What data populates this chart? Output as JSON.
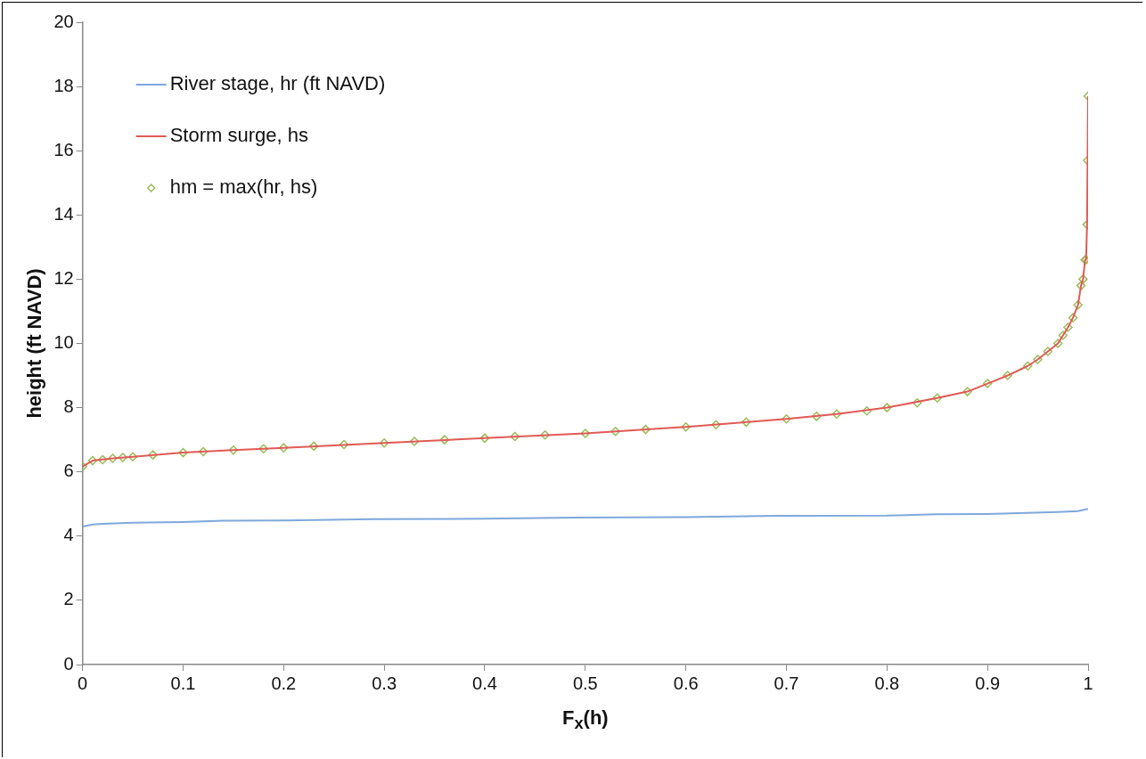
{
  "chart_data": {
    "type": "line",
    "xlabel": "F$_{x}$(h)",
    "ylabel": "height (ft NAVD)",
    "xlim": [
      0,
      1
    ],
    "xticks": [
      0,
      0.1,
      0.2,
      0.3,
      0.4,
      0.5,
      0.6,
      0.7,
      0.8,
      0.9,
      1
    ],
    "ylim": [
      0,
      20
    ],
    "yticks": [
      0,
      2,
      4,
      6,
      8,
      10,
      12,
      14,
      16,
      18,
      20
    ],
    "grid": false,
    "legend": "top left",
    "series": [
      {
        "name": "River stage, hr (ft NAVD)",
        "color": "#7fa8dc",
        "marker": "none",
        "x": [
          0,
          0.005,
          0.01,
          0.02,
          0.05,
          0.1,
          0.14,
          0.2,
          0.29,
          0.4,
          0.49,
          0.6,
          0.69,
          0.8,
          0.85,
          0.9,
          0.97,
          0.99,
          1
        ],
        "values": [
          4.3,
          4.33,
          4.36,
          4.38,
          4.42,
          4.44,
          4.48,
          4.49,
          4.53,
          4.54,
          4.58,
          4.59,
          4.63,
          4.64,
          4.68,
          4.69,
          4.75,
          4.78,
          4.85
        ]
      },
      {
        "name": "Storm surge, hs",
        "color": "#e05a55",
        "marker": "none",
        "x": [
          0,
          0.01,
          0.03,
          0.05,
          0.1,
          0.15,
          0.2,
          0.3,
          0.4,
          0.5,
          0.6,
          0.7,
          0.75,
          0.8,
          0.85,
          0.88,
          0.9,
          0.92,
          0.94,
          0.95,
          0.96,
          0.97,
          0.975,
          0.98,
          0.985,
          0.99,
          0.993,
          0.995,
          0.997,
          0.998,
          0.999,
          0.9995,
          1
        ],
        "values": [
          6.17,
          6.35,
          6.42,
          6.47,
          6.6,
          6.68,
          6.75,
          6.9,
          7.05,
          7.2,
          7.4,
          7.65,
          7.8,
          8.0,
          8.3,
          8.5,
          8.75,
          9.0,
          9.3,
          9.5,
          9.75,
          10.0,
          10.25,
          10.5,
          10.8,
          11.2,
          11.8,
          12.0,
          12.6,
          12.6,
          13.7,
          15.7,
          17.7
        ]
      },
      {
        "name": "hm = max(hr, hs)",
        "color": "#9bbb59",
        "type": "scatter",
        "marker": "diamond",
        "x": [
          0,
          0.01,
          0.02,
          0.03,
          0.04,
          0.05,
          0.07,
          0.1,
          0.12,
          0.15,
          0.18,
          0.2,
          0.23,
          0.26,
          0.3,
          0.33,
          0.36,
          0.4,
          0.43,
          0.46,
          0.5,
          0.53,
          0.56,
          0.6,
          0.63,
          0.66,
          0.7,
          0.73,
          0.75,
          0.78,
          0.8,
          0.83,
          0.85,
          0.88,
          0.9,
          0.92,
          0.94,
          0.95,
          0.96,
          0.97,
          0.975,
          0.98,
          0.985,
          0.99,
          0.993,
          0.995,
          0.997,
          0.998,
          0.999,
          0.9995,
          1
        ],
        "values": [
          6.17,
          6.35,
          6.38,
          6.42,
          6.45,
          6.47,
          6.53,
          6.6,
          6.63,
          6.68,
          6.72,
          6.75,
          6.8,
          6.85,
          6.9,
          6.95,
          7.0,
          7.05,
          7.1,
          7.15,
          7.2,
          7.26,
          7.32,
          7.4,
          7.47,
          7.55,
          7.65,
          7.73,
          7.8,
          7.9,
          8.0,
          8.15,
          8.3,
          8.5,
          8.75,
          9.0,
          9.3,
          9.5,
          9.75,
          10.0,
          10.25,
          10.5,
          10.8,
          11.2,
          11.8,
          12.0,
          12.6,
          12.6,
          13.7,
          15.7,
          17.7
        ]
      }
    ]
  }
}
